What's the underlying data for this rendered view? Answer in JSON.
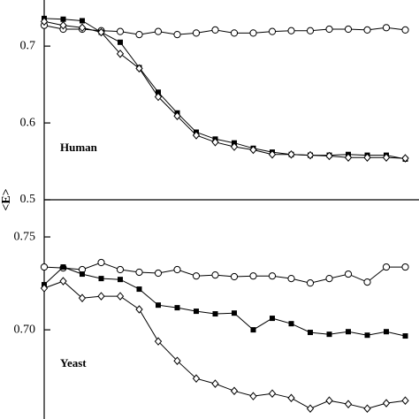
{
  "chart_data": [
    {
      "type": "line",
      "ylabel": "<E>",
      "annotation": "Human",
      "categories": [
        null,
        null,
        null,
        null,
        null,
        null,
        null,
        null,
        null,
        null,
        null,
        null,
        null,
        null,
        null,
        null,
        null,
        null,
        null,
        null
      ],
      "ylim": [
        0.5,
        0.76
      ],
      "yticks": [
        0.5,
        0.6,
        0.7
      ],
      "series": [
        {
          "color": "#000000",
          "marker": "circle",
          "values": [
            0.727,
            0.722,
            0.722,
            0.72,
            0.719,
            0.715,
            0.719,
            0.715,
            0.717,
            0.721,
            0.717,
            0.717,
            0.719,
            0.72,
            0.72,
            0.722,
            0.722,
            0.721,
            0.724,
            0.721
          ]
        },
        {
          "color": "#000000",
          "marker": "square",
          "values": [
            0.736,
            0.735,
            0.733,
            0.718,
            0.705,
            0.672,
            0.64,
            0.613,
            0.588,
            0.579,
            0.574,
            0.567,
            0.562,
            0.559,
            0.558,
            0.558,
            0.559,
            0.558,
            0.558,
            0.553
          ]
        },
        {
          "color": "#000000",
          "marker": "diamond",
          "values": [
            0.732,
            0.727,
            0.724,
            0.718,
            0.69,
            0.671,
            0.634,
            0.609,
            0.584,
            0.575,
            0.569,
            0.565,
            0.559,
            0.559,
            0.558,
            0.557,
            0.555,
            0.555,
            0.555,
            0.554
          ]
        }
      ]
    },
    {
      "type": "line",
      "annotation": "Yeast",
      "categories": [
        null,
        null,
        null,
        null,
        null,
        null,
        null,
        null,
        null,
        null,
        null,
        null,
        null,
        null,
        null,
        null,
        null,
        null,
        null,
        null
      ],
      "ylim": [
        0.652,
        0.77
      ],
      "yticks": [
        {
          "value": 0.7,
          "label": "0.70"
        },
        0.75
      ],
      "series": [
        {
          "color": "#000000",
          "marker": "circle",
          "values": [
            0.7338,
            0.7333,
            0.7324,
            0.7362,
            0.7324,
            0.731,
            0.7305,
            0.7324,
            0.729,
            0.7295,
            0.7286,
            0.729,
            0.729,
            0.7276,
            0.7252,
            0.7276,
            0.73,
            0.7257,
            0.7338,
            0.7338
          ]
        },
        {
          "color": "#000000",
          "marker": "square",
          "values": [
            0.7243,
            0.7338,
            0.73,
            0.7276,
            0.7271,
            0.7219,
            0.7133,
            0.7119,
            0.71,
            0.7086,
            0.709,
            0.7,
            0.7062,
            0.7033,
            0.6986,
            0.6976,
            0.699,
            0.6971,
            0.699,
            0.6967
          ]
        },
        {
          "color": "#000000",
          "marker": "diamond",
          "values": [
            0.7224,
            0.7262,
            0.7171,
            0.7181,
            0.7181,
            0.711,
            0.6938,
            0.6833,
            0.6738,
            0.671,
            0.6671,
            0.6643,
            0.6657,
            0.6633,
            0.6576,
            0.6619,
            0.66,
            0.6576,
            0.6605,
            0.6619
          ]
        }
      ]
    }
  ]
}
